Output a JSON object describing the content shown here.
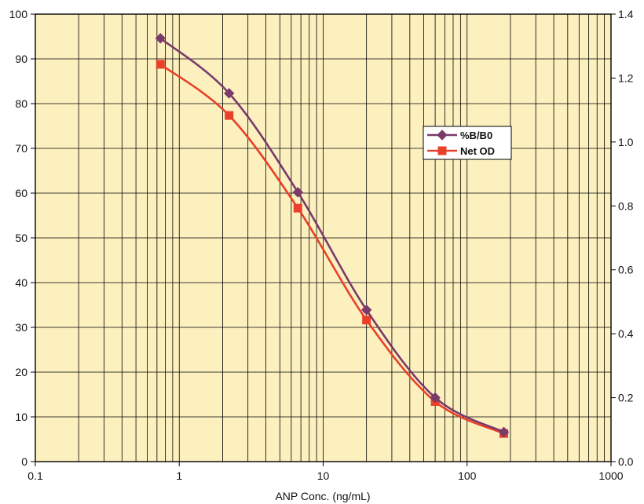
{
  "chart_data": {
    "type": "line",
    "xlabel": "ANP Conc.  (ng/mL)",
    "x_scale": "log",
    "xlim": [
      0.1,
      1000
    ],
    "x_ticks": [
      "0.1",
      "1",
      "10",
      "100",
      "1000"
    ],
    "ylim_left": [
      0,
      100
    ],
    "y_ticks_left": [
      "0",
      "10",
      "20",
      "30",
      "40",
      "50",
      "60",
      "70",
      "80",
      "90",
      "100"
    ],
    "ylim_right": [
      0,
      1.4
    ],
    "y_ticks_right": [
      "0.0",
      "0.2",
      "0.4",
      "0.6",
      "0.8",
      "1.0",
      "1.2",
      "1.4"
    ],
    "grid": true,
    "legend_position": "right",
    "series": [
      {
        "name": "%B/B0",
        "axis": "left",
        "marker": "diamond",
        "color": "#7a3a6a",
        "x": [
          0.74,
          2.22,
          6.67,
          20,
          60,
          180
        ],
        "y": [
          94.6,
          82.3,
          60.2,
          33.9,
          14.3,
          6.6
        ]
      },
      {
        "name": "Net OD",
        "axis": "right",
        "marker": "square",
        "color": "#e8402a",
        "x": [
          0.74,
          2.22,
          6.67,
          20,
          60,
          180
        ],
        "y": [
          1.243,
          1.083,
          0.793,
          0.443,
          0.188,
          0.088
        ]
      }
    ]
  },
  "colors": {
    "plot_background": "#fcf0bf",
    "grid": "#000000"
  }
}
